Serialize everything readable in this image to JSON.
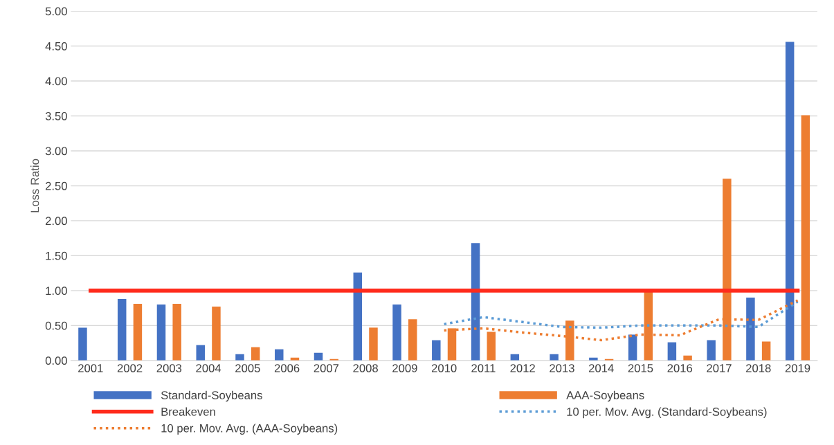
{
  "chart_data": {
    "type": "bar",
    "ylabel": "Loss Ratio",
    "categories": [
      "2001",
      "2002",
      "2003",
      "2004",
      "2005",
      "2006",
      "2007",
      "2008",
      "2009",
      "2010",
      "2011",
      "2012",
      "2013",
      "2014",
      "2015",
      "2016",
      "2017",
      "2018",
      "2019"
    ],
    "series": [
      {
        "name": "Standard-Soybeans",
        "color": "#4472c4",
        "values": [
          0.47,
          0.88,
          0.8,
          0.22,
          0.09,
          0.16,
          0.11,
          1.26,
          0.8,
          0.29,
          1.68,
          0.09,
          0.09,
          0.04,
          0.37,
          0.26,
          0.29,
          0.9,
          4.56
        ]
      },
      {
        "name": "AAA-Soybeans",
        "color": "#ed7d31",
        "values": [
          null,
          0.81,
          0.81,
          0.77,
          0.19,
          0.04,
          0.02,
          0.47,
          0.59,
          0.46,
          0.41,
          null,
          0.57,
          0.02,
          1.0,
          0.07,
          2.6,
          0.27,
          3.51
        ]
      },
      {
        "name": "Breakeven",
        "type": "line",
        "color": "#ff2b1c",
        "line_style": "solid",
        "values": [
          1,
          1,
          1,
          1,
          1,
          1,
          1,
          1,
          1,
          1,
          1,
          1,
          1,
          1,
          1,
          1,
          1,
          1,
          1
        ]
      },
      {
        "name": "10 per. Mov. Avg. (Standard-Soybeans)",
        "type": "line",
        "color": "#5b9bd5",
        "line_style": "dotted",
        "values": [
          null,
          null,
          null,
          null,
          null,
          null,
          null,
          null,
          null,
          0.52,
          0.62,
          0.55,
          0.48,
          0.47,
          0.5,
          0.5,
          0.5,
          0.48,
          0.84
        ]
      },
      {
        "name": "10 per. Mov. Avg. (AAA-Soybeans)",
        "type": "line",
        "color": "#ed7d31",
        "line_style": "dotted",
        "values": [
          null,
          null,
          null,
          null,
          null,
          null,
          null,
          null,
          null,
          0.43,
          0.46,
          0.4,
          0.35,
          0.29,
          0.37,
          0.36,
          0.59,
          0.58,
          0.86
        ]
      }
    ],
    "ylim": [
      0,
      5
    ],
    "yticks": [
      {
        "value": 0,
        "label": "0.00"
      },
      {
        "value": 0.5,
        "label": "0.50"
      },
      {
        "value": 1,
        "label": "1.00"
      },
      {
        "value": 1.5,
        "label": "1.50"
      },
      {
        "value": 2,
        "label": "2.00"
      },
      {
        "value": 2.5,
        "label": "2.50"
      },
      {
        "value": 3,
        "label": "3.00"
      },
      {
        "value": 3.5,
        "label": "3.50"
      },
      {
        "value": 4,
        "label": "4.00"
      },
      {
        "value": 4.5,
        "label": "4.50"
      },
      {
        "value": 5,
        "label": "5.00"
      }
    ],
    "grid": "y",
    "legend": "bottom"
  }
}
